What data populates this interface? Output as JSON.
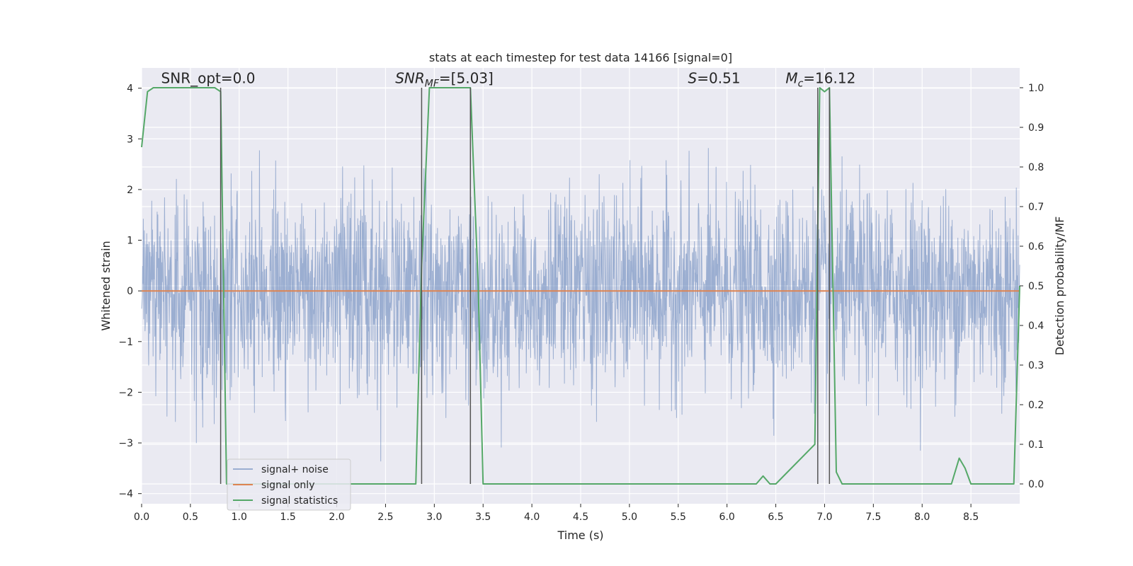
{
  "chart_data": {
    "type": "line",
    "title": "stats at each timestep for test data 14166 [signal=0]",
    "xlabel": "Time (s)",
    "ylabel": "Whitened strain",
    "ylabel_right": "Detection probability/MF",
    "xlim": [
      0.0,
      9.0
    ],
    "ylim": [
      -4.2,
      4.4
    ],
    "ylim_right": [
      -0.05,
      1.05
    ],
    "x_ticks": [
      0.0,
      0.5,
      1.0,
      1.5,
      2.0,
      2.5,
      3.0,
      3.5,
      4.0,
      4.5,
      5.0,
      5.5,
      6.0,
      6.5,
      7.0,
      7.5,
      8.0,
      8.5
    ],
    "x_tick_labels": [
      "0.0",
      "0.5",
      "1.0",
      "1.5",
      "2.0",
      "2.5",
      "3.0",
      "3.5",
      "4.0",
      "4.5",
      "5.0",
      "5.5",
      "6.0",
      "6.5",
      "7.0",
      "7.5",
      "8.0",
      "8.5"
    ],
    "y_ticks": [
      -4,
      -3,
      -2,
      -1,
      0,
      1,
      2,
      3,
      4
    ],
    "y_tick_labels": [
      "−4",
      "−3",
      "−2",
      "−1",
      "0",
      "1",
      "2",
      "3",
      "4"
    ],
    "y_ticks_right": [
      0.0,
      0.1,
      0.2,
      0.3,
      0.4,
      0.5,
      0.6,
      0.7,
      0.8,
      0.9,
      1.0
    ],
    "y_tick_labels_right": [
      "0.0",
      "0.1",
      "0.2",
      "0.3",
      "0.4",
      "0.5",
      "0.6",
      "0.7",
      "0.8",
      "0.9",
      "1.0"
    ],
    "grid": true,
    "legend_position": "lower-left",
    "annotations": [
      {
        "name": "snr-opt-annotation",
        "x": 0.2,
        "y": 4.1,
        "parts": [
          {
            "text": "SNR_opt=0.0"
          }
        ]
      },
      {
        "name": "snr-mf-annotation",
        "x": 2.6,
        "y": 4.1,
        "parts": [
          {
            "text": "SNR",
            "italic": true
          },
          {
            "text": "MF",
            "italic": true,
            "sub": true
          },
          {
            "text": "=[5.03]"
          }
        ]
      },
      {
        "name": "s-annotation",
        "x": 5.6,
        "y": 4.1,
        "parts": [
          {
            "text": "S",
            "italic": true
          },
          {
            "text": "=0.51"
          }
        ]
      },
      {
        "name": "mc-annotation",
        "x": 6.6,
        "y": 4.1,
        "parts": [
          {
            "text": "M",
            "italic": true
          },
          {
            "text": "c",
            "italic": true,
            "sub": true
          },
          {
            "text": "=16.12"
          }
        ]
      }
    ],
    "vertical_lines": [
      0.81,
      2.87,
      3.37,
      6.93,
      7.05
    ],
    "series": [
      {
        "name": "signal+ noise",
        "color": "#4c72b0",
        "style": "noise",
        "x_range": [
          0.0,
          9.0
        ],
        "std": 0.95,
        "max_abs": 3.8
      },
      {
        "name": "signal only",
        "color": "#dd8452",
        "style": "line",
        "x": [
          0.0,
          9.0
        ],
        "values": [
          0.0,
          0.0
        ]
      },
      {
        "name": "signal statistics",
        "color": "#55a868",
        "style": "line",
        "axis": "right",
        "x": [
          0.0,
          0.06,
          0.12,
          0.75,
          0.81,
          0.84,
          0.87,
          2.81,
          2.87,
          2.95,
          3.37,
          3.45,
          3.5,
          6.3,
          6.37,
          6.44,
          6.5,
          6.9,
          6.95,
          7.0,
          7.05,
          7.12,
          7.18,
          8.3,
          8.38,
          8.44,
          8.5,
          8.94,
          9.0
        ],
        "values": [
          0.85,
          0.99,
          1.0,
          1.0,
          0.99,
          0.5,
          0.0,
          0.0,
          0.55,
          1.0,
          1.0,
          0.5,
          0.0,
          0.0,
          0.02,
          0.0,
          0.0,
          0.1,
          1.0,
          0.99,
          1.0,
          0.03,
          0.0,
          0.0,
          0.065,
          0.04,
          0.0,
          0.0,
          0.5
        ]
      }
    ]
  }
}
